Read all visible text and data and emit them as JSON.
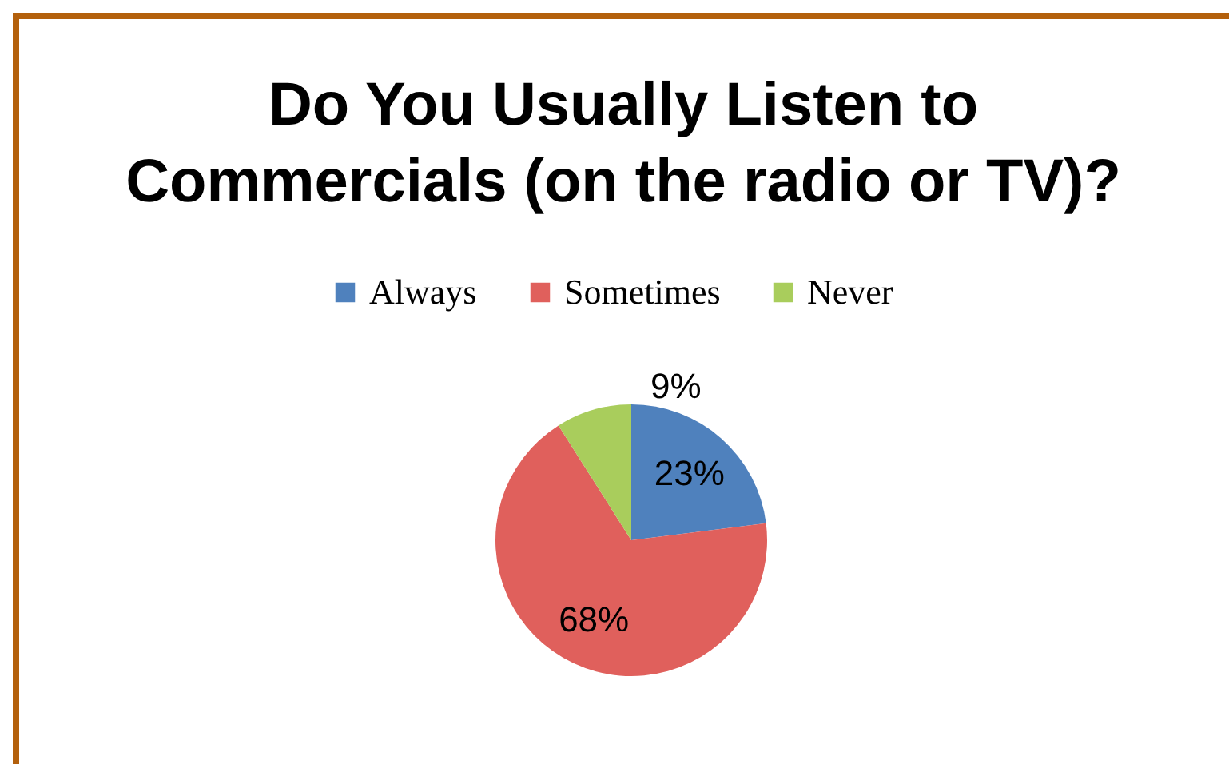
{
  "chart_data": {
    "type": "pie",
    "title": "Do You Usually Listen to Commercials (on the radio or TV)?",
    "categories": [
      "Always",
      "Sometimes",
      "Never"
    ],
    "values": [
      23,
      68,
      9
    ],
    "colors": [
      "#4f81bd",
      "#e0605c",
      "#a9cd5c"
    ],
    "value_labels": [
      "23%",
      "68%",
      "9%"
    ],
    "legend": "top"
  }
}
